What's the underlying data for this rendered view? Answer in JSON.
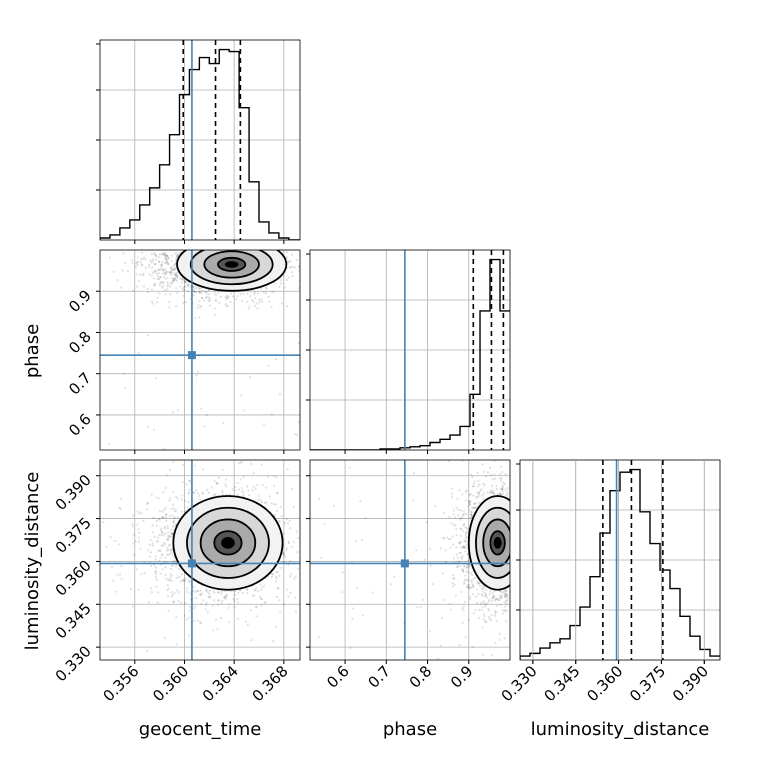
{
  "chart_data": {
    "type": "corner",
    "parameters": [
      "geocent_time",
      "phase",
      "luminosity_distance"
    ],
    "axis_labels": {
      "geocent_time": "geocent_time",
      "phase": "phase",
      "luminosity_distance": "luminosity_distance"
    },
    "ranges": {
      "geocent_time": [
        0.3532,
        0.3693
      ],
      "phase": [
        0.515,
        1.0
      ],
      "luminosity_distance": [
        0.3255,
        0.3955
      ]
    },
    "ticks": {
      "geocent_time": [
        0.356,
        0.36,
        0.364,
        0.368
      ],
      "phase": [
        0.6,
        0.7,
        0.8,
        0.9
      ],
      "luminosity_distance": [
        0.33,
        0.345,
        0.36,
        0.375,
        0.39
      ]
    },
    "tick_labels": {
      "geocent_time": [
        "0.356",
        "0.360",
        "0.364",
        "0.368"
      ],
      "phase": [
        "0.6",
        "0.7",
        "0.8",
        "0.9"
      ],
      "luminosity_distance": [
        "0.330",
        "0.345",
        "0.360",
        "0.375",
        "0.390"
      ]
    },
    "truths": {
      "geocent_time": 0.3606,
      "phase": 0.745,
      "luminosity_distance": 0.3593
    },
    "truth_color": "#4682b4",
    "quantiles": {
      "geocent_time": [
        0.3599,
        0.3625,
        0.3645
      ],
      "phase": [
        0.911,
        0.955,
        0.984
      ],
      "luminosity_distance": [
        0.3545,
        0.3645,
        0.3755
      ]
    },
    "histograms": {
      "geocent_time": {
        "edges": [
          0.3532,
          0.354,
          0.3548,
          0.3556,
          0.3564,
          0.3572,
          0.358,
          0.3588,
          0.3596,
          0.3604,
          0.3612,
          0.362,
          0.3628,
          0.3636,
          0.3644,
          0.3652,
          0.366,
          0.3668,
          0.3676,
          0.3684,
          0.3693
        ],
        "counts": [
          2,
          5,
          12,
          20,
          35,
          52,
          75,
          105,
          145,
          170,
          182,
          176,
          190,
          188,
          132,
          58,
          18,
          7,
          2,
          0
        ]
      },
      "phase": {
        "edges": [
          0.515,
          0.5393,
          0.5635,
          0.5878,
          0.612,
          0.6363,
          0.6605,
          0.6848,
          0.709,
          0.7333,
          0.7575,
          0.7818,
          0.806,
          0.8303,
          0.8545,
          0.8788,
          0.903,
          0.9273,
          0.9515,
          0.9758,
          1.0
        ],
        "counts": [
          0,
          0,
          0,
          0,
          0,
          0,
          0,
          1,
          1,
          2,
          3,
          4,
          7,
          10,
          14,
          22,
          52,
          130,
          178,
          130
        ]
      },
      "luminosity_distance": {
        "edges": [
          0.3255,
          0.329,
          0.3325,
          0.336,
          0.3395,
          0.343,
          0.3465,
          0.35,
          0.3535,
          0.357,
          0.3605,
          0.364,
          0.3675,
          0.371,
          0.3745,
          0.378,
          0.3815,
          0.385,
          0.3885,
          0.392,
          0.3955
        ],
        "counts": [
          3,
          5,
          9,
          13,
          16,
          26,
          40,
          63,
          96,
          128,
          142,
          144,
          112,
          88,
          68,
          54,
          33,
          18,
          8,
          3
        ]
      }
    },
    "joint": [
      {
        "x": "geocent_time",
        "y": "phase",
        "mean": [
          0.3628,
          0.955
        ],
        "sd": [
          0.0022,
          0.032
        ],
        "peak": [
          0.3638,
          0.965
        ]
      },
      {
        "x": "geocent_time",
        "y": "luminosity_distance",
        "mean": [
          0.3627,
          0.3655
        ],
        "sd": [
          0.0022,
          0.0082
        ],
        "peak": [
          0.3635,
          0.3665
        ]
      },
      {
        "x": "phase",
        "y": "luminosity_distance",
        "mean": [
          0.96,
          0.3655
        ],
        "sd": [
          0.035,
          0.0082
        ],
        "peak": [
          0.97,
          0.3665
        ]
      }
    ]
  }
}
